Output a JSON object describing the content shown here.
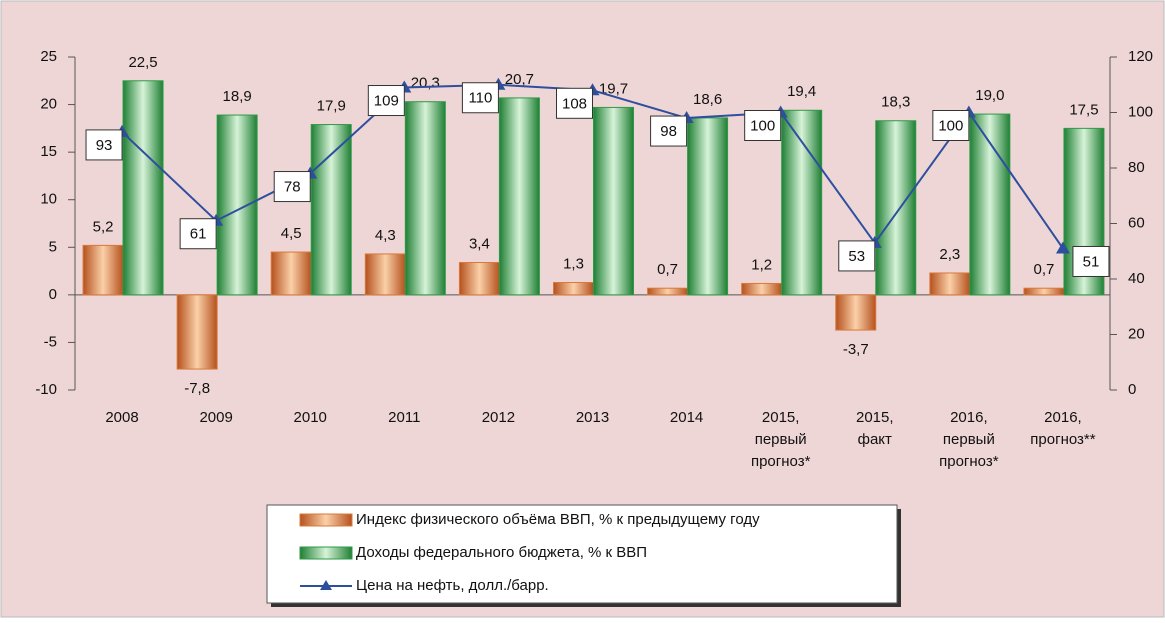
{
  "chart_data": {
    "type": "bar",
    "categories": [
      [
        "2008"
      ],
      [
        "2009"
      ],
      [
        "2010"
      ],
      [
        "2011"
      ],
      [
        "2012"
      ],
      [
        "2013"
      ],
      [
        "2014"
      ],
      [
        "2015,",
        "первый",
        "прогноз*"
      ],
      [
        "2015,",
        "факт"
      ],
      [
        "2016,",
        "первый",
        "прогноз*"
      ],
      [
        "2016,",
        "прогноз**"
      ]
    ],
    "series": [
      {
        "name": "Индекс физического объёма ВВП, % к предыдущему году",
        "type": "bar",
        "color": "#d9793a",
        "values": [
          5.2,
          -7.8,
          4.5,
          4.3,
          3.4,
          1.3,
          0.7,
          1.2,
          -3.7,
          2.3,
          0.7
        ],
        "value_labels": [
          "5,2",
          "-7,8",
          "4,5",
          "4,3",
          "3,4",
          "1,3",
          "0,7",
          "1,2",
          "-3,7",
          "2,3",
          "0,7"
        ]
      },
      {
        "name": "Доходы федерального бюджета, % к ВВП",
        "type": "bar",
        "color": "#2f9a47",
        "values": [
          22.5,
          18.9,
          17.9,
          20.3,
          20.7,
          19.7,
          18.6,
          19.4,
          18.3,
          19.0,
          17.5
        ],
        "value_labels": [
          "22,5",
          "18,9",
          "17,9",
          "20,3",
          "20,7",
          "19,7",
          "18,6",
          "19,4",
          "18,3",
          "19,0",
          "17,5"
        ]
      },
      {
        "name": "Цена на нефть, долл./барр.",
        "type": "line",
        "axis": "y2",
        "color": "#2e4f9e",
        "values": [
          93,
          61,
          78,
          109,
          110,
          108,
          98,
          100,
          53,
          100,
          51
        ]
      }
    ],
    "ylim": [
      -10,
      25
    ],
    "yticks": [
      -10,
      -5,
      0,
      5,
      10,
      15,
      20,
      25
    ],
    "y2lim": [
      0,
      120
    ],
    "y2ticks": [
      0,
      20,
      40,
      60,
      80,
      100,
      120
    ]
  }
}
